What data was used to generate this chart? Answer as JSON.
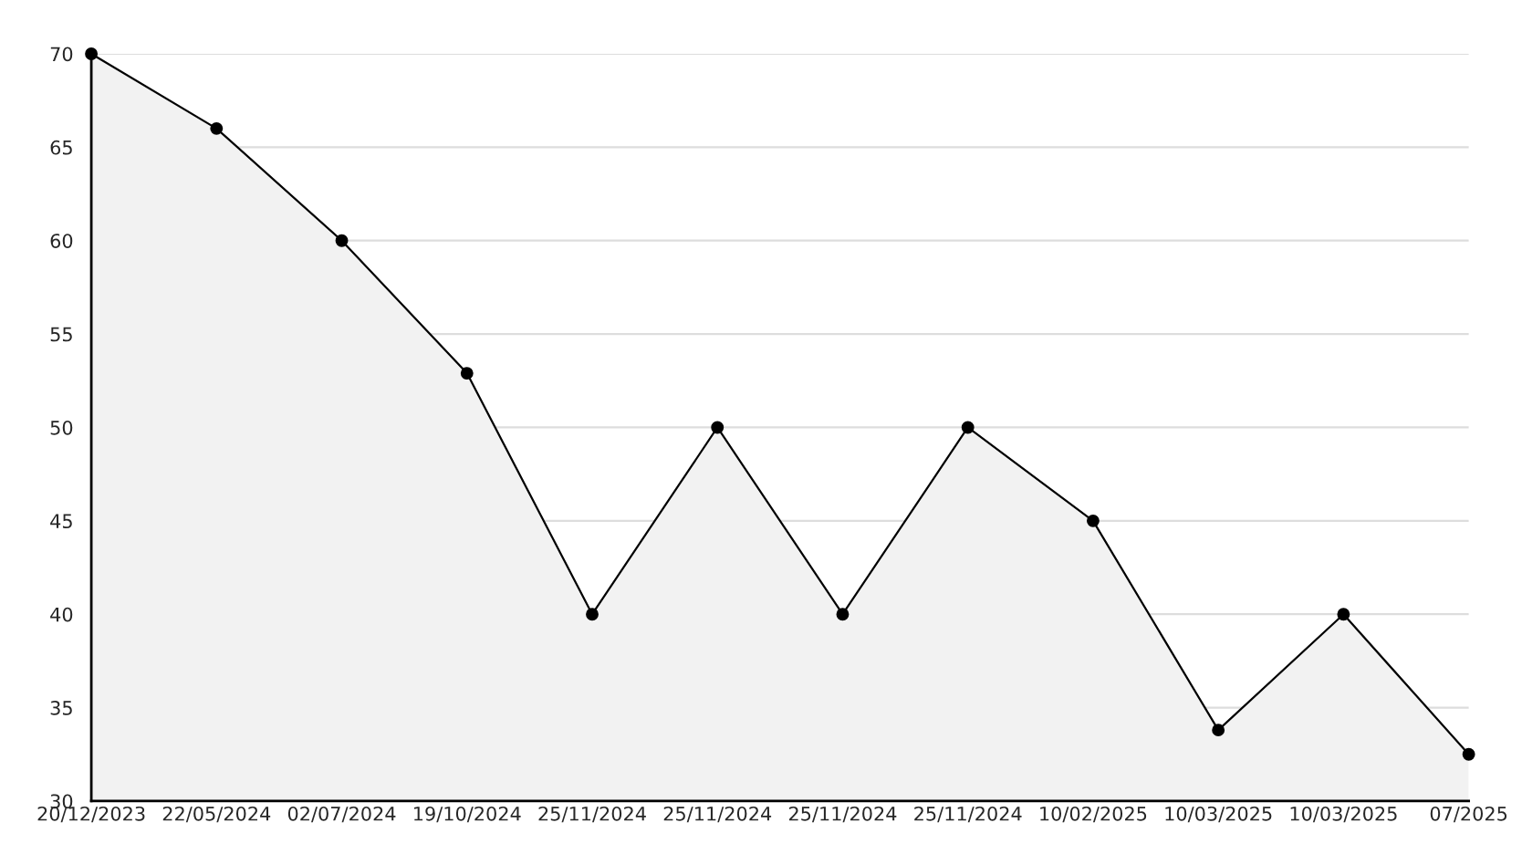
{
  "chart_data": {
    "type": "area",
    "categories": [
      "20/12/2023",
      "22/05/2024",
      "02/07/2024",
      "19/10/2024",
      "25/11/2024",
      "25/11/2024",
      "25/11/2024",
      "25/11/2024",
      "10/02/2025",
      "10/03/2025",
      "10/03/2025",
      "07/2025"
    ],
    "series": [
      {
        "color": "#f2f2f2",
        "values": [
          70,
          66,
          60,
          52.9,
          40,
          50,
          40,
          50,
          45,
          33.8,
          40,
          32.5
        ]
      }
    ],
    "ylim": [
      30,
      70
    ],
    "yticks": [
      30,
      35,
      40,
      45,
      50,
      55,
      60,
      65,
      70
    ],
    "grid": "y",
    "marker": "circle",
    "line_style": "solid",
    "legend": false
  }
}
